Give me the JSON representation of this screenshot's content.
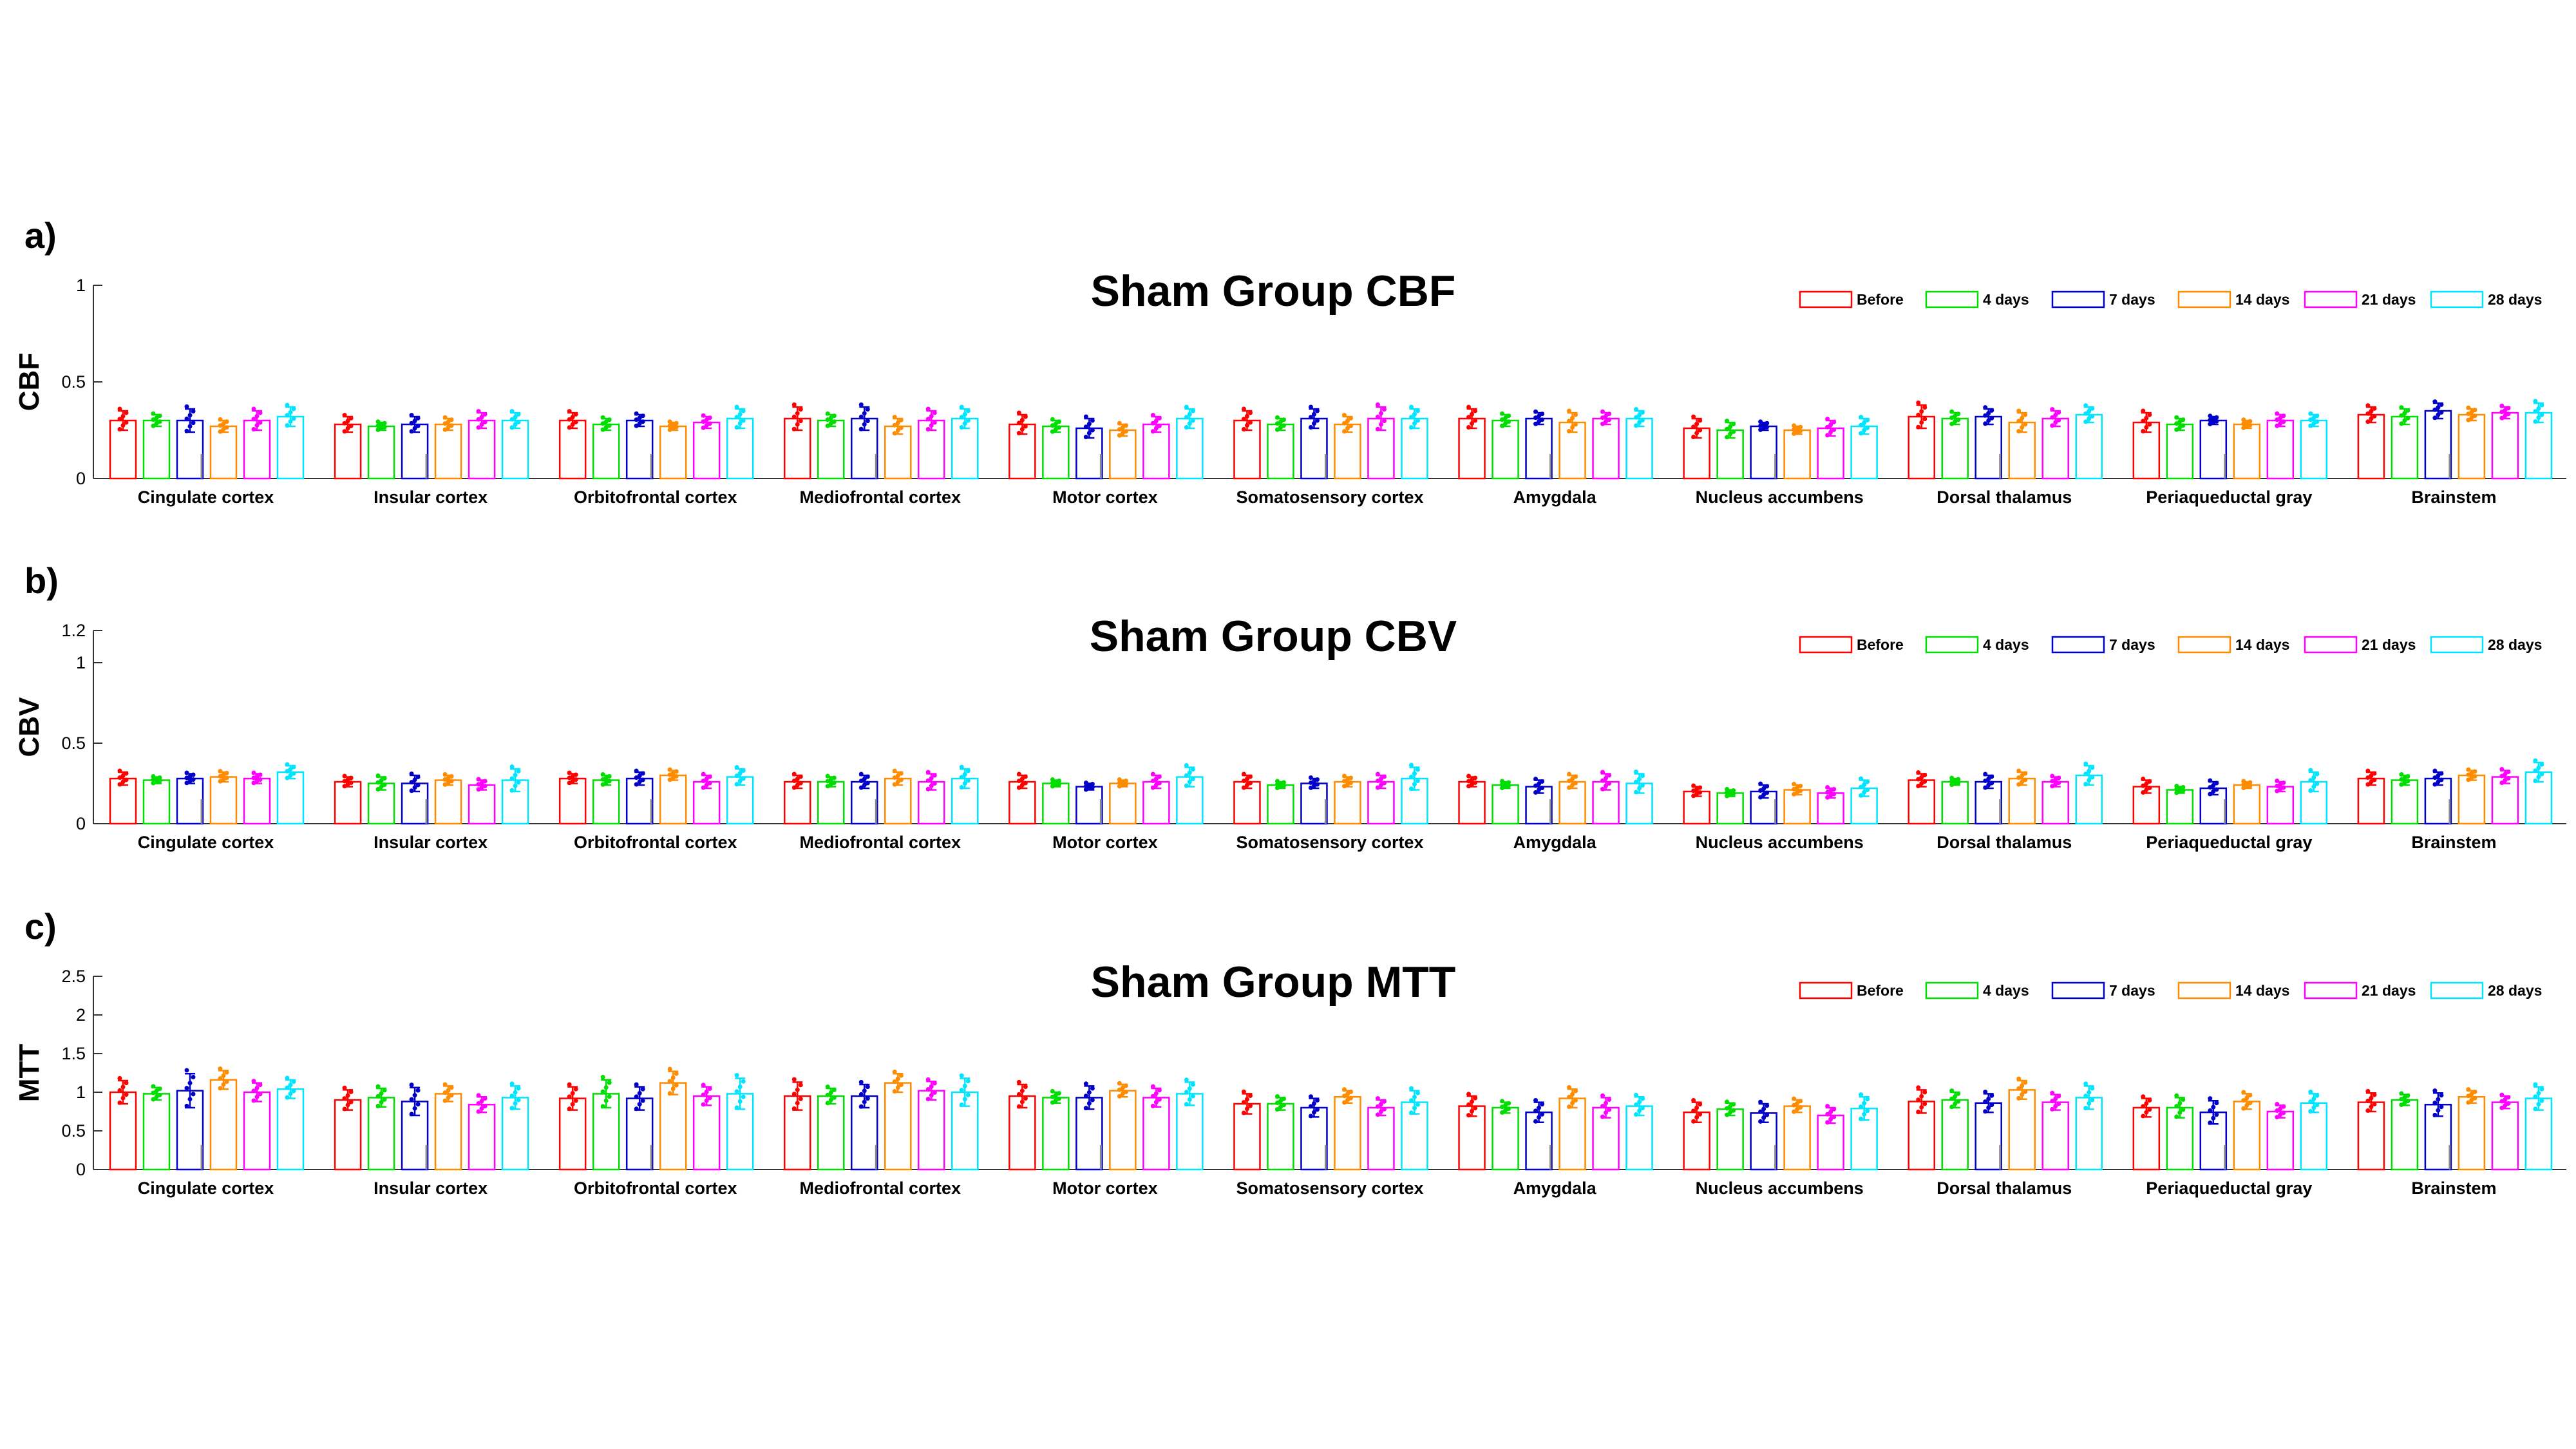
{
  "figure": {
    "categories": [
      "Cingulate cortex",
      "Insular cortex",
      "Orbitofrontal cortex",
      "Mediofrontal cortex",
      "Motor cortex",
      "Somatosensory cortex",
      "Amygdala",
      "Nucleus accumbens",
      "Dorsal thalamus",
      "Periaqueductal gray",
      "Brainstem"
    ],
    "legend": [
      "Before",
      "4 days",
      "7 days",
      "14 days",
      "21 days",
      "28 days"
    ],
    "series_colors": [
      "#ff0000",
      "#00dd00",
      "#0000c8",
      "#ff8c00",
      "#ff00ff",
      "#00e5ff"
    ]
  },
  "chart_data": [
    {
      "type": "bar",
      "panel_label": "a)",
      "title": "Sham Group CBF",
      "ylabel": "CBF",
      "ylim": [
        0,
        1
      ],
      "yticks": [
        0,
        0.5,
        1
      ],
      "ytick_labels": [
        "0",
        "0.5",
        "1"
      ],
      "legend_position": "top-right",
      "series": [
        {
          "name": "Before",
          "values": [
            0.3,
            0.28,
            0.3,
            0.31,
            0.28,
            0.3,
            0.31,
            0.26,
            0.32,
            0.29,
            0.33
          ],
          "errors": [
            0.05,
            0.04,
            0.04,
            0.06,
            0.05,
            0.05,
            0.05,
            0.05,
            0.06,
            0.05,
            0.04
          ]
        },
        {
          "name": "4 days",
          "values": [
            0.3,
            0.27,
            0.28,
            0.3,
            0.27,
            0.28,
            0.3,
            0.25,
            0.31,
            0.28,
            0.32
          ],
          "errors": [
            0.03,
            0.02,
            0.03,
            0.03,
            0.03,
            0.03,
            0.03,
            0.04,
            0.03,
            0.03,
            0.04
          ]
        },
        {
          "name": "7 days",
          "values": [
            0.3,
            0.28,
            0.3,
            0.31,
            0.26,
            0.31,
            0.31,
            0.27,
            0.32,
            0.3,
            0.35
          ],
          "errors": [
            0.06,
            0.04,
            0.03,
            0.06,
            0.05,
            0.05,
            0.03,
            0.02,
            0.04,
            0.02,
            0.04
          ]
        },
        {
          "name": "14 days",
          "values": [
            0.27,
            0.28,
            0.27,
            0.27,
            0.25,
            0.28,
            0.29,
            0.25,
            0.29,
            0.28,
            0.33
          ],
          "errors": [
            0.03,
            0.03,
            0.02,
            0.04,
            0.03,
            0.04,
            0.05,
            0.02,
            0.05,
            0.02,
            0.03
          ]
        },
        {
          "name": "21 days",
          "values": [
            0.3,
            0.3,
            0.29,
            0.3,
            0.28,
            0.31,
            0.31,
            0.26,
            0.31,
            0.3,
            0.34
          ],
          "errors": [
            0.05,
            0.04,
            0.03,
            0.05,
            0.04,
            0.06,
            0.03,
            0.04,
            0.04,
            0.03,
            0.03
          ]
        },
        {
          "name": "28 days",
          "values": [
            0.32,
            0.3,
            0.31,
            0.31,
            0.31,
            0.31,
            0.31,
            0.27,
            0.33,
            0.3,
            0.34
          ],
          "errors": [
            0.05,
            0.04,
            0.05,
            0.05,
            0.05,
            0.05,
            0.04,
            0.04,
            0.04,
            0.03,
            0.05
          ]
        }
      ]
    },
    {
      "type": "bar",
      "panel_label": "b)",
      "title": "Sham Group CBV",
      "ylabel": "CBV",
      "ylim": [
        0,
        1.2
      ],
      "yticks": [
        0,
        0.5,
        1,
        1.2
      ],
      "ytick_labels": [
        "0",
        "0.5",
        "1",
        "1.2"
      ],
      "legend_position": "top-right",
      "series": [
        {
          "name": "Before",
          "values": [
            0.28,
            0.26,
            0.28,
            0.26,
            0.26,
            0.26,
            0.26,
            0.2,
            0.27,
            0.23,
            0.28
          ],
          "errors": [
            0.04,
            0.03,
            0.03,
            0.04,
            0.04,
            0.04,
            0.03,
            0.03,
            0.04,
            0.04,
            0.04
          ]
        },
        {
          "name": "4 days",
          "values": [
            0.27,
            0.25,
            0.27,
            0.26,
            0.25,
            0.24,
            0.24,
            0.19,
            0.26,
            0.21,
            0.27
          ],
          "errors": [
            0.02,
            0.04,
            0.03,
            0.03,
            0.02,
            0.02,
            0.02,
            0.02,
            0.02,
            0.02,
            0.03
          ]
        },
        {
          "name": "7 days",
          "values": [
            0.28,
            0.25,
            0.28,
            0.26,
            0.23,
            0.25,
            0.23,
            0.2,
            0.26,
            0.22,
            0.28
          ],
          "errors": [
            0.03,
            0.05,
            0.04,
            0.04,
            0.02,
            0.03,
            0.04,
            0.04,
            0.04,
            0.04,
            0.04
          ]
        },
        {
          "name": "14 days",
          "values": [
            0.29,
            0.27,
            0.3,
            0.28,
            0.25,
            0.26,
            0.26,
            0.21,
            0.28,
            0.24,
            0.3
          ],
          "errors": [
            0.03,
            0.03,
            0.03,
            0.04,
            0.02,
            0.03,
            0.04,
            0.03,
            0.04,
            0.02,
            0.03
          ]
        },
        {
          "name": "21 days",
          "values": [
            0.28,
            0.24,
            0.26,
            0.26,
            0.26,
            0.26,
            0.26,
            0.19,
            0.26,
            0.23,
            0.29
          ],
          "errors": [
            0.03,
            0.03,
            0.04,
            0.05,
            0.04,
            0.04,
            0.05,
            0.03,
            0.03,
            0.03,
            0.04
          ]
        },
        {
          "name": "28 days",
          "values": [
            0.32,
            0.27,
            0.29,
            0.28,
            0.29,
            0.28,
            0.25,
            0.22,
            0.3,
            0.26,
            0.32
          ],
          "errors": [
            0.04,
            0.07,
            0.05,
            0.06,
            0.06,
            0.07,
            0.06,
            0.05,
            0.06,
            0.06,
            0.06
          ]
        }
      ]
    },
    {
      "type": "bar",
      "panel_label": "c)",
      "title": "Sham Group MTT",
      "ylabel": "MTT",
      "ylim": [
        0,
        2.5
      ],
      "yticks": [
        0,
        0.5,
        1,
        1.5,
        2,
        2.5
      ],
      "ytick_labels": [
        "0",
        "0.5",
        "1",
        "1.5",
        "2",
        "2.5"
      ],
      "legend_position": "top-right",
      "series": [
        {
          "name": "Before",
          "values": [
            1.0,
            0.9,
            0.92,
            0.95,
            0.95,
            0.85,
            0.82,
            0.74,
            0.88,
            0.8,
            0.87
          ],
          "errors": [
            0.15,
            0.13,
            0.15,
            0.18,
            0.15,
            0.13,
            0.13,
            0.13,
            0.15,
            0.12,
            0.12
          ]
        },
        {
          "name": "4 days",
          "values": [
            0.98,
            0.93,
            0.98,
            0.95,
            0.93,
            0.85,
            0.8,
            0.78,
            0.9,
            0.8,
            0.9
          ],
          "errors": [
            0.08,
            0.12,
            0.18,
            0.1,
            0.07,
            0.08,
            0.07,
            0.08,
            0.1,
            0.13,
            0.07
          ]
        },
        {
          "name": "7 days",
          "values": [
            1.02,
            0.88,
            0.92,
            0.95,
            0.93,
            0.8,
            0.74,
            0.73,
            0.86,
            0.74,
            0.84
          ],
          "errors": [
            0.22,
            0.18,
            0.15,
            0.15,
            0.15,
            0.12,
            0.13,
            0.12,
            0.12,
            0.15,
            0.15
          ]
        },
        {
          "name": "14 days",
          "values": [
            1.16,
            0.98,
            1.12,
            1.12,
            1.02,
            0.94,
            0.92,
            0.82,
            1.03,
            0.88,
            0.94
          ],
          "errors": [
            0.12,
            0.1,
            0.15,
            0.12,
            0.08,
            0.08,
            0.12,
            0.08,
            0.12,
            0.1,
            0.08
          ]
        },
        {
          "name": "21 days",
          "values": [
            1.0,
            0.84,
            0.95,
            1.02,
            0.93,
            0.8,
            0.8,
            0.7,
            0.87,
            0.75,
            0.87
          ],
          "errors": [
            0.12,
            0.1,
            0.12,
            0.12,
            0.12,
            0.1,
            0.13,
            0.1,
            0.1,
            0.08,
            0.08
          ]
        },
        {
          "name": "28 days",
          "values": [
            1.04,
            0.93,
            0.98,
            1.0,
            0.98,
            0.87,
            0.82,
            0.79,
            0.93,
            0.86,
            0.92
          ],
          "errors": [
            0.12,
            0.15,
            0.2,
            0.18,
            0.15,
            0.15,
            0.12,
            0.15,
            0.15,
            0.12,
            0.15
          ]
        }
      ]
    }
  ]
}
